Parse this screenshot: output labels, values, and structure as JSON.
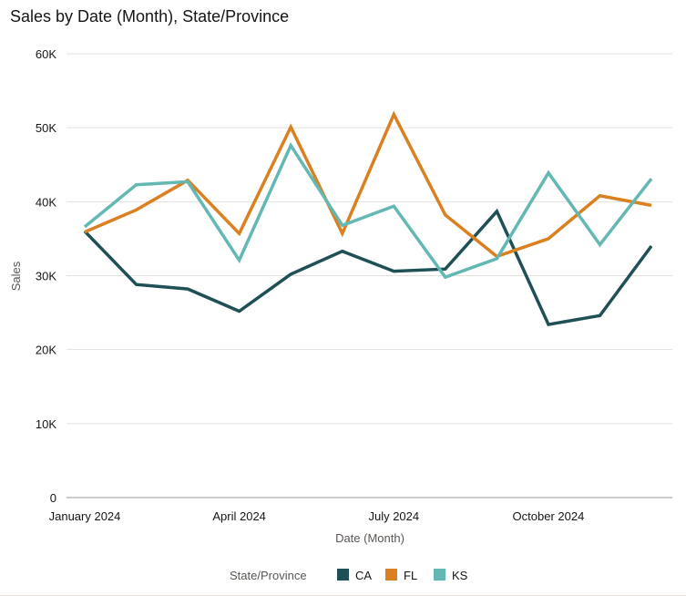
{
  "chart_data": {
    "type": "line",
    "title": "Sales by Date (Month), State/Province",
    "xlabel": "Date (Month)",
    "ylabel": "Sales",
    "ylim": [
      0,
      60000
    ],
    "yticks": [
      0,
      10000,
      20000,
      30000,
      40000,
      50000,
      60000
    ],
    "ytick_labels": [
      "0",
      "10K",
      "20K",
      "30K",
      "40K",
      "50K",
      "60K"
    ],
    "categories": [
      "2024-01",
      "2024-02",
      "2024-03",
      "2024-04",
      "2024-05",
      "2024-06",
      "2024-07",
      "2024-08",
      "2024-09",
      "2024-10",
      "2024-11",
      "2024-12"
    ],
    "xtick_labels": [
      {
        "index": 0,
        "label": "January 2024"
      },
      {
        "index": 3,
        "label": "April 2024"
      },
      {
        "index": 6,
        "label": "July 2024"
      },
      {
        "index": 9,
        "label": "October 2024"
      }
    ],
    "legend_title": "State/Province",
    "legend_position": "bottom",
    "grid": true,
    "series": [
      {
        "name": "CA",
        "color": "#1f5055",
        "values": [
          36000,
          28800,
          28200,
          25200,
          30200,
          33300,
          30600,
          30900,
          38700,
          23400,
          24600,
          34000
        ]
      },
      {
        "name": "FL",
        "color": "#db8020",
        "values": [
          35900,
          38900,
          42900,
          35700,
          50100,
          35700,
          51800,
          38200,
          32600,
          35000,
          40800,
          39500
        ]
      },
      {
        "name": "KS",
        "color": "#63b8b3",
        "values": [
          36600,
          42300,
          42700,
          32100,
          47600,
          36800,
          39400,
          29800,
          32300,
          43900,
          34200,
          43100
        ]
      }
    ]
  }
}
